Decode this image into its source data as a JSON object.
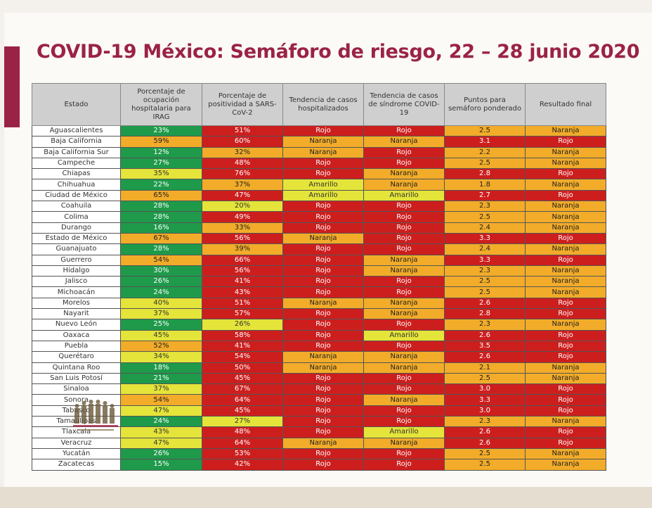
{
  "title": "COVID-19 México: Semáforo de riesgo, 22 – 28 junio 2020",
  "colors": {
    "verde": "#1e9a4a",
    "amarillo": "#e4e43a",
    "naranja": "#f2ac29",
    "rojo": "#cd1e1e",
    "accent": "#9b2247"
  },
  "table": {
    "headers": [
      "Estado",
      "Porcentaje de ocupación hospitalaria para IRAG",
      "Porcentaje de positividad a SARS-CoV-2",
      "Tendencia de casos hospitalizados",
      "Tendencia de casos de síndrome COVID-19",
      "Puntos para semáforo ponderado",
      "Resultado final"
    ],
    "rows": [
      {
        "estado": "Aguascalientes",
        "ocupacion": "23%",
        "positividad": "51%",
        "hosp": "Rojo",
        "sindrome": "Rojo",
        "puntos": "2.5",
        "resultado": "Naranja",
        "c": [
          "g",
          "r",
          "r",
          "r",
          "o",
          "o"
        ]
      },
      {
        "estado": "Baja California",
        "ocupacion": "59%",
        "positividad": "60%",
        "hosp": "Naranja",
        "sindrome": "Naranja",
        "puntos": "3.1",
        "resultado": "Rojo",
        "c": [
          "o",
          "r",
          "o",
          "o",
          "r",
          "r"
        ]
      },
      {
        "estado": "Baja California Sur",
        "ocupacion": "12%",
        "positividad": "32%",
        "hosp": "Naranja",
        "sindrome": "Rojo",
        "puntos": "2.2",
        "resultado": "Naranja",
        "c": [
          "g",
          "o",
          "o",
          "r",
          "o",
          "o"
        ]
      },
      {
        "estado": "Campeche",
        "ocupacion": "27%",
        "positividad": "48%",
        "hosp": "Rojo",
        "sindrome": "Rojo",
        "puntos": "2.5",
        "resultado": "Naranja",
        "c": [
          "g",
          "r",
          "r",
          "r",
          "o",
          "o"
        ]
      },
      {
        "estado": "Chiapas",
        "ocupacion": "35%",
        "positividad": "76%",
        "hosp": "Rojo",
        "sindrome": "Naranja",
        "puntos": "2.8",
        "resultado": "Rojo",
        "c": [
          "y",
          "r",
          "r",
          "o",
          "r",
          "r"
        ]
      },
      {
        "estado": "Chihuahua",
        "ocupacion": "22%",
        "positividad": "37%",
        "hosp": "Amarillo",
        "sindrome": "Naranja",
        "puntos": "1.8",
        "resultado": "Naranja",
        "c": [
          "g",
          "o",
          "y",
          "o",
          "o",
          "o"
        ]
      },
      {
        "estado": "Ciudad de México",
        "ocupacion": "65%",
        "positividad": "47%",
        "hosp": "Amarillo",
        "sindrome": "Amarillo",
        "puntos": "2.7",
        "resultado": "Rojo",
        "c": [
          "o",
          "r",
          "y",
          "y",
          "r",
          "r"
        ]
      },
      {
        "estado": "Coahuila",
        "ocupacion": "28%",
        "positividad": "20%",
        "hosp": "Rojo",
        "sindrome": "Rojo",
        "puntos": "2.3",
        "resultado": "Naranja",
        "c": [
          "g",
          "y",
          "r",
          "r",
          "o",
          "o"
        ]
      },
      {
        "estado": "Colima",
        "ocupacion": "28%",
        "positividad": "49%",
        "hosp": "Rojo",
        "sindrome": "Rojo",
        "puntos": "2.5",
        "resultado": "Naranja",
        "c": [
          "g",
          "r",
          "r",
          "r",
          "o",
          "o"
        ]
      },
      {
        "estado": "Durango",
        "ocupacion": "16%",
        "positividad": "33%",
        "hosp": "Rojo",
        "sindrome": "Rojo",
        "puntos": "2.4",
        "resultado": "Naranja",
        "c": [
          "g",
          "o",
          "r",
          "r",
          "o",
          "o"
        ]
      },
      {
        "estado": "Estado de México",
        "ocupacion": "67%",
        "positividad": "56%",
        "hosp": "Naranja",
        "sindrome": "Rojo",
        "puntos": "3.3",
        "resultado": "Rojo",
        "c": [
          "o",
          "r",
          "o",
          "r",
          "r",
          "r"
        ]
      },
      {
        "estado": "Guanajuato",
        "ocupacion": "28%",
        "positividad": "39%",
        "hosp": "Rojo",
        "sindrome": "Rojo",
        "puntos": "2.4",
        "resultado": "Naranja",
        "c": [
          "g",
          "o",
          "r",
          "r",
          "o",
          "o"
        ]
      },
      {
        "estado": "Guerrero",
        "ocupacion": "54%",
        "positividad": "66%",
        "hosp": "Rojo",
        "sindrome": "Naranja",
        "puntos": "3.3",
        "resultado": "Rojo",
        "c": [
          "o",
          "r",
          "r",
          "o",
          "r",
          "r"
        ]
      },
      {
        "estado": "Hidalgo",
        "ocupacion": "30%",
        "positividad": "56%",
        "hosp": "Rojo",
        "sindrome": "Naranja",
        "puntos": "2.3",
        "resultado": "Naranja",
        "c": [
          "g",
          "r",
          "r",
          "o",
          "o",
          "o"
        ]
      },
      {
        "estado": "Jalisco",
        "ocupacion": "26%",
        "positividad": "41%",
        "hosp": "Rojo",
        "sindrome": "Rojo",
        "puntos": "2.5",
        "resultado": "Naranja",
        "c": [
          "g",
          "r",
          "r",
          "r",
          "o",
          "o"
        ]
      },
      {
        "estado": "Michoacán",
        "ocupacion": "24%",
        "positividad": "43%",
        "hosp": "Rojo",
        "sindrome": "Rojo",
        "puntos": "2.5",
        "resultado": "Naranja",
        "c": [
          "g",
          "r",
          "r",
          "r",
          "o",
          "o"
        ]
      },
      {
        "estado": "Morelos",
        "ocupacion": "40%",
        "positividad": "51%",
        "hosp": "Naranja",
        "sindrome": "Naranja",
        "puntos": "2.6",
        "resultado": "Rojo",
        "c": [
          "y",
          "r",
          "o",
          "o",
          "r",
          "r"
        ]
      },
      {
        "estado": "Nayarit",
        "ocupacion": "37%",
        "positividad": "57%",
        "hosp": "Rojo",
        "sindrome": "Naranja",
        "puntos": "2.8",
        "resultado": "Rojo",
        "c": [
          "y",
          "r",
          "r",
          "o",
          "r",
          "r"
        ]
      },
      {
        "estado": "Nuevo León",
        "ocupacion": "25%",
        "positividad": "26%",
        "hosp": "Rojo",
        "sindrome": "Rojo",
        "puntos": "2.3",
        "resultado": "Naranja",
        "c": [
          "g",
          "y",
          "r",
          "r",
          "o",
          "o"
        ]
      },
      {
        "estado": "Oaxaca",
        "ocupacion": "45%",
        "positividad": "58%",
        "hosp": "Rojo",
        "sindrome": "Amarillo",
        "puntos": "2.6",
        "resultado": "Rojo",
        "c": [
          "y",
          "r",
          "r",
          "y",
          "r",
          "r"
        ]
      },
      {
        "estado": "Puebla",
        "ocupacion": "52%",
        "positividad": "41%",
        "hosp": "Rojo",
        "sindrome": "Rojo",
        "puntos": "3.5",
        "resultado": "Rojo",
        "c": [
          "o",
          "r",
          "r",
          "r",
          "r",
          "r"
        ]
      },
      {
        "estado": "Querétaro",
        "ocupacion": "34%",
        "positividad": "54%",
        "hosp": "Naranja",
        "sindrome": "Naranja",
        "puntos": "2.6",
        "resultado": "Rojo",
        "c": [
          "y",
          "r",
          "o",
          "o",
          "r",
          "r"
        ]
      },
      {
        "estado": "Quintana Roo",
        "ocupacion": "18%",
        "positividad": "50%",
        "hosp": "Naranja",
        "sindrome": "Naranja",
        "puntos": "2.1",
        "resultado": "Naranja",
        "c": [
          "g",
          "r",
          "o",
          "o",
          "o",
          "o"
        ]
      },
      {
        "estado": "San Luis Potosí",
        "ocupacion": "21%",
        "positividad": "45%",
        "hosp": "Rojo",
        "sindrome": "Rojo",
        "puntos": "2.5",
        "resultado": "Naranja",
        "c": [
          "g",
          "r",
          "r",
          "r",
          "o",
          "o"
        ]
      },
      {
        "estado": "Sinaloa",
        "ocupacion": "37%",
        "positividad": "67%",
        "hosp": "Rojo",
        "sindrome": "Rojo",
        "puntos": "3.0",
        "resultado": "Rojo",
        "c": [
          "y",
          "r",
          "r",
          "r",
          "r",
          "r"
        ]
      },
      {
        "estado": "Sonora",
        "ocupacion": "54%",
        "positividad": "64%",
        "hosp": "Rojo",
        "sindrome": "Naranja",
        "puntos": "3.3",
        "resultado": "Rojo",
        "c": [
          "o",
          "r",
          "r",
          "o",
          "r",
          "r"
        ]
      },
      {
        "estado": "Tabasco",
        "ocupacion": "47%",
        "positividad": "45%",
        "hosp": "Rojo",
        "sindrome": "Rojo",
        "puntos": "3.0",
        "resultado": "Rojo",
        "c": [
          "y",
          "r",
          "r",
          "r",
          "r",
          "r"
        ]
      },
      {
        "estado": "Tamaulipas",
        "ocupacion": "24%",
        "positividad": "27%",
        "hosp": "Rojo",
        "sindrome": "Rojo",
        "puntos": "2.3",
        "resultado": "Naranja",
        "c": [
          "g",
          "y",
          "r",
          "r",
          "o",
          "o"
        ]
      },
      {
        "estado": "Tlaxcala",
        "ocupacion": "43%",
        "positividad": "48%",
        "hosp": "Rojo",
        "sindrome": "Amarillo",
        "puntos": "2.6",
        "resultado": "Rojo",
        "c": [
          "y",
          "r",
          "r",
          "y",
          "r",
          "r"
        ]
      },
      {
        "estado": "Veracruz",
        "ocupacion": "47%",
        "positividad": "64%",
        "hosp": "Naranja",
        "sindrome": "Naranja",
        "puntos": "2.6",
        "resultado": "Rojo",
        "c": [
          "y",
          "r",
          "o",
          "o",
          "r",
          "r"
        ]
      },
      {
        "estado": "Yucatán",
        "ocupacion": "26%",
        "positividad": "53%",
        "hosp": "Rojo",
        "sindrome": "Rojo",
        "puntos": "2.5",
        "resultado": "Naranja",
        "c": [
          "g",
          "r",
          "r",
          "r",
          "o",
          "o"
        ]
      },
      {
        "estado": "Zacatecas",
        "ocupacion": "15%",
        "positividad": "42%",
        "hosp": "Rojo",
        "sindrome": "Rojo",
        "puntos": "2.5",
        "resultado": "Naranja",
        "c": [
          "g",
          "r",
          "r",
          "r",
          "o",
          "o"
        ]
      }
    ]
  }
}
